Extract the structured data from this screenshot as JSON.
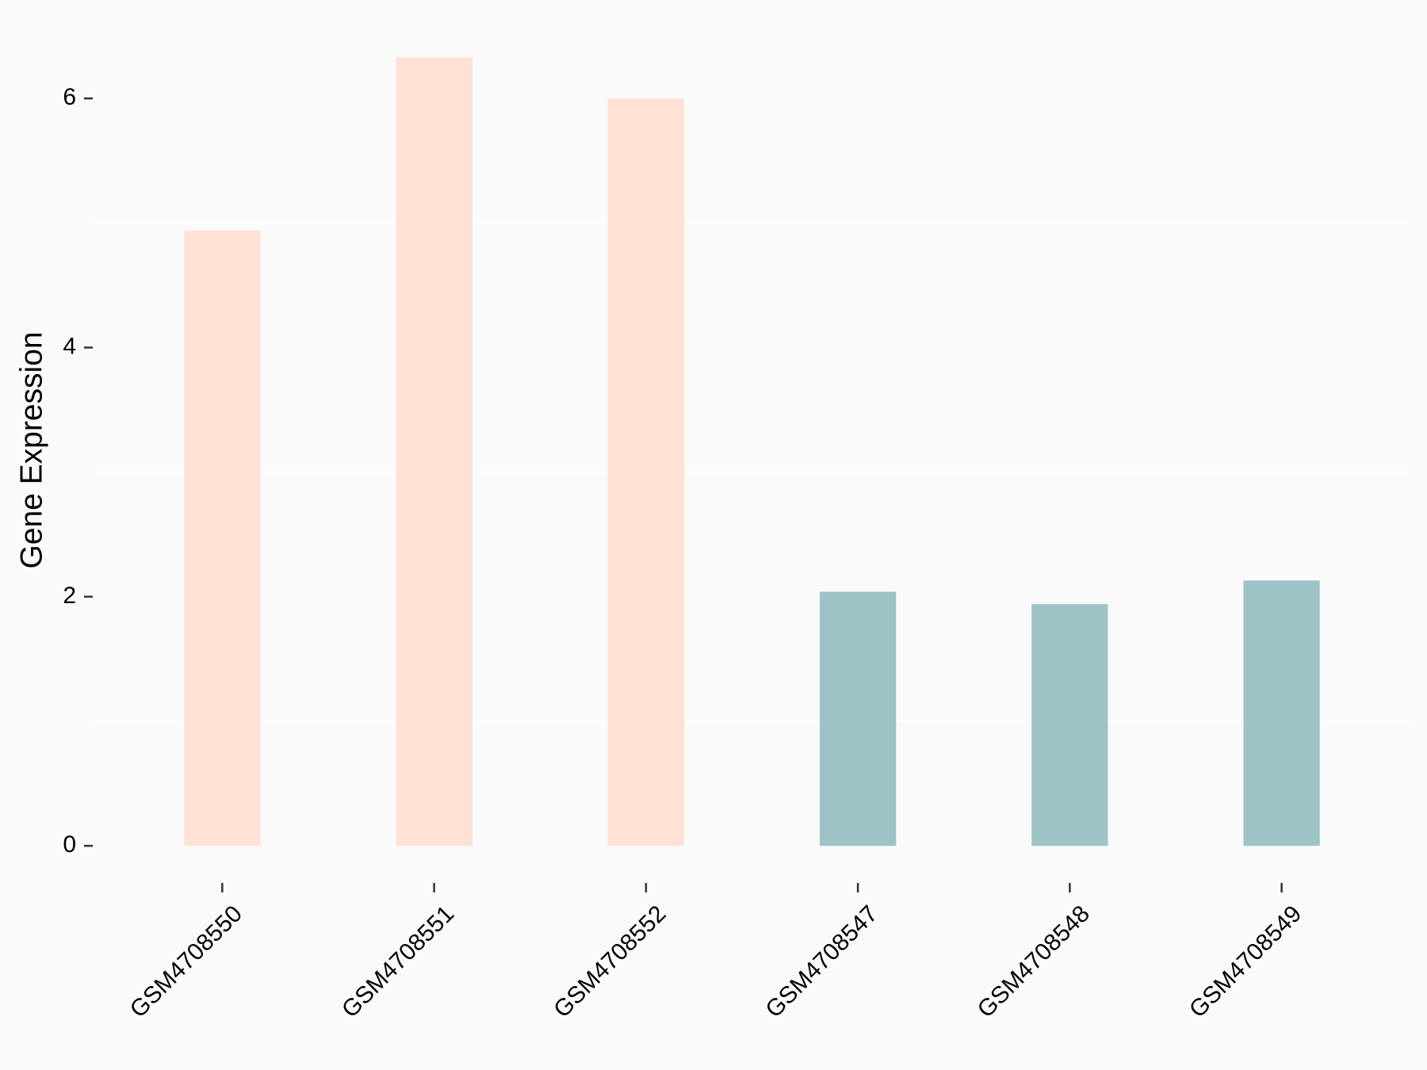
{
  "chart_data": {
    "type": "bar",
    "y_label": "Gene Expression",
    "categories": [
      "GSM4708550",
      "GSM4708551",
      "GSM4708552",
      "GSM4708547",
      "GSM4708548",
      "GSM4708549"
    ],
    "values": [
      4.94,
      6.33,
      6.0,
      2.04,
      1.94,
      2.13
    ],
    "colors": [
      "#FFE1D6",
      "#FFE1D6",
      "#FFE1D6",
      "#9DC3C6",
      "#9DC3C6",
      "#9DC3C6"
    ],
    "ylim": [
      -0.317,
      6.65
    ],
    "yticks": [
      0,
      2,
      4,
      6
    ],
    "minor_grid": [
      1,
      3,
      5
    ],
    "grid": true
  }
}
